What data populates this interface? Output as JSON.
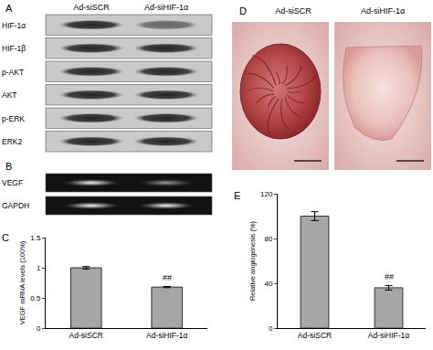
{
  "panels": {
    "A": {
      "letter": "A",
      "columns": [
        "Ad-siSCR",
        "Ad-siHIF-1α"
      ],
      "rows": [
        "HIF-1α",
        "HIF-1β",
        "p-AKT",
        "AKT",
        "p-ERK",
        "ERK2"
      ]
    },
    "B": {
      "letter": "B",
      "rows": [
        "VEGF",
        "GAPDH"
      ]
    },
    "C": {
      "letter": "C"
    },
    "D": {
      "letter": "D",
      "columns": [
        "Ad-siSCR",
        "Ad-siHIF-1α"
      ]
    },
    "E": {
      "letter": "E"
    }
  },
  "chart_data": [
    {
      "type": "bar",
      "panel": "C",
      "categories": [
        "Ad-siSCR",
        "Ad-siHIF-1α"
      ],
      "values": [
        1.0,
        0.68
      ],
      "errors": [
        0.02,
        0.01
      ],
      "ylabel": "VEGF mRNA levels (100%)",
      "ylim": [
        0,
        1.5
      ],
      "yticks": [
        0,
        0.5,
        1,
        1.5
      ],
      "color": "#a6a6a6",
      "grid": false,
      "annotations": [
        {
          "category": "Ad-siHIF-1α",
          "text": "##"
        }
      ]
    },
    {
      "type": "bar",
      "panel": "E",
      "categories": [
        "Ad-siSCR",
        "Ad-siHIF-1α"
      ],
      "values": [
        100,
        36
      ],
      "errors": [
        4,
        2
      ],
      "ylabel": "Relative angiogenesis (%)",
      "ylim": [
        0,
        120
      ],
      "yticks": [
        0,
        40,
        80,
        120
      ],
      "color": "#a6a6a6",
      "grid": false,
      "annotations": [
        {
          "category": "Ad-siHIF-1α",
          "text": "##"
        }
      ]
    }
  ]
}
